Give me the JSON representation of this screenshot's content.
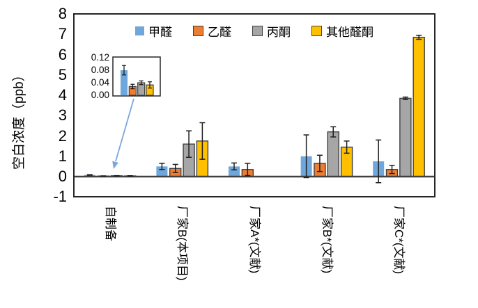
{
  "chart_data": {
    "type": "bar",
    "title": "",
    "ylabel": "空白浓度（ppb）",
    "xlabel": "",
    "ylim": [
      -1,
      8
    ],
    "yticks": [
      "8",
      "7",
      "6",
      "5",
      "4",
      "3",
      "2",
      "1",
      "0",
      "-1"
    ],
    "grid": false,
    "legend_position": "top-center-inside",
    "categories": [
      "自制备",
      "厂家B(本项目)",
      "厂家A*(文献)",
      "厂家B*(文献)",
      "厂家C*(文献)"
    ],
    "series": [
      {
        "name": "甲醛",
        "color": "#6FA6DB",
        "bordered": false,
        "values": [
          0.08,
          0.5,
          0.5,
          1.0,
          0.75
        ],
        "errors": [
          0.015,
          0.15,
          0.17,
          1.05,
          1.05
        ]
      },
      {
        "name": "乙醛",
        "color": "#ED7D31",
        "bordered": true,
        "values": [
          0.028,
          0.4,
          0.35,
          0.65,
          0.35
        ],
        "errors": [
          0.007,
          0.2,
          0.3,
          0.4,
          0.2
        ]
      },
      {
        "name": "丙酮",
        "color": "#A6A6A6",
        "bordered": true,
        "values": [
          0.04,
          1.6,
          null,
          2.2,
          3.85
        ],
        "errors": [
          0.006,
          0.65,
          null,
          0.25,
          0.06
        ]
      },
      {
        "name": "其他醛酮",
        "color": "#FFC000",
        "bordered": true,
        "values": [
          0.033,
          1.75,
          null,
          1.45,
          6.85
        ],
        "errors": [
          0.01,
          0.9,
          null,
          0.3,
          0.1
        ]
      }
    ],
    "inset": {
      "magnifies_category": "自制备",
      "yticks": [
        "0.12",
        "0.08",
        "0.04",
        "0.00"
      ],
      "ylim": [
        0,
        0.125
      ]
    },
    "colors": {
      "bar_border": "#3F3F3F",
      "error_bar": "#1F1F1F",
      "axis": "#262626",
      "zero_line": "#404040",
      "arrow": "#7CA7DB"
    }
  }
}
